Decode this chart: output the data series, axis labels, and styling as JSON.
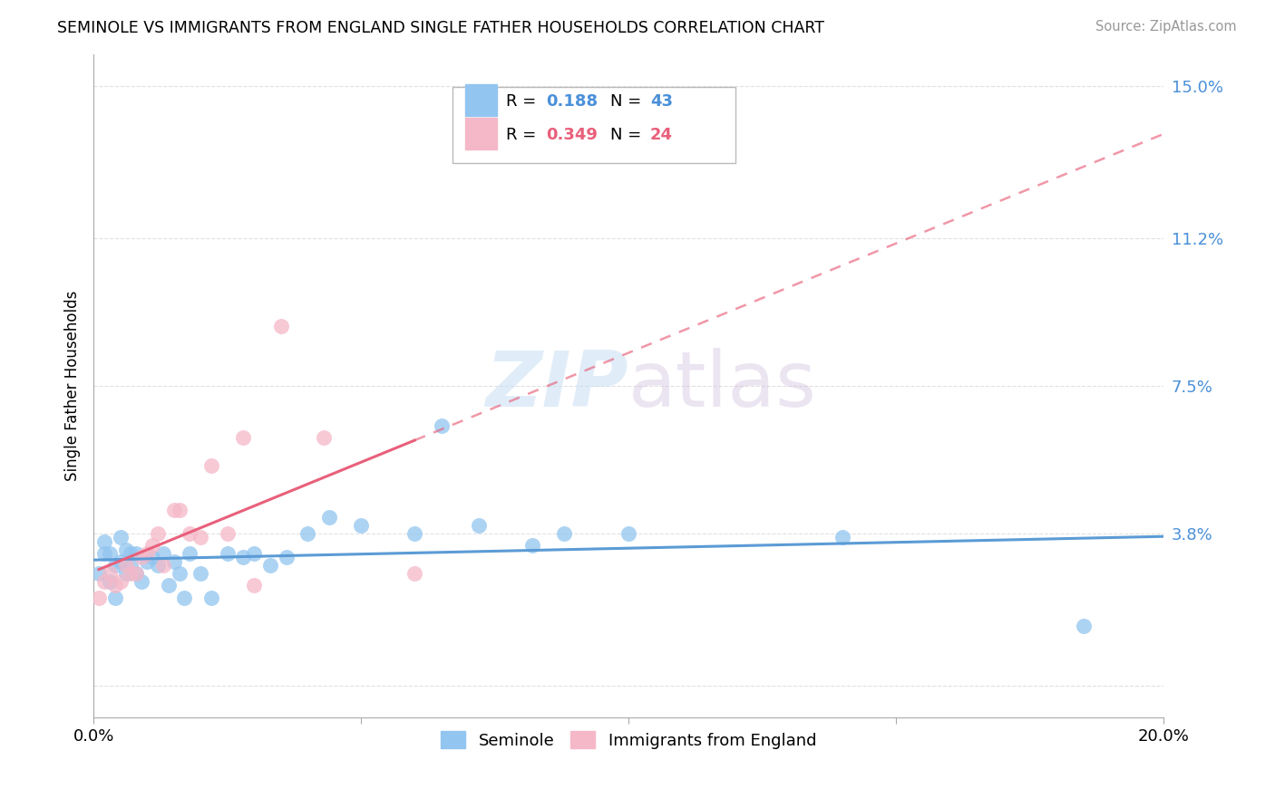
{
  "title": "SEMINOLE VS IMMIGRANTS FROM ENGLAND SINGLE FATHER HOUSEHOLDS CORRELATION CHART",
  "source": "Source: ZipAtlas.com",
  "ylabel": "Single Father Households",
  "xlim": [
    0.0,
    0.2
  ],
  "ylim": [
    -0.008,
    0.158
  ],
  "ytick_vals": [
    0.0,
    0.038,
    0.075,
    0.112,
    0.15
  ],
  "ytick_labels": [
    "",
    "3.8%",
    "7.5%",
    "11.2%",
    "15.0%"
  ],
  "xtick_vals": [
    0.0,
    0.05,
    0.1,
    0.15,
    0.2
  ],
  "xtick_labels": [
    "0.0%",
    "",
    "",
    "",
    "20.0%"
  ],
  "blue_R": "0.188",
  "blue_N": "43",
  "pink_R": "0.349",
  "pink_N": "24",
  "blue_color": "#92C5F0",
  "pink_color": "#F5B8C8",
  "blue_line_color": "#5B9BD5",
  "pink_line_color": "#E8607A",
  "sem_x": [
    0.001,
    0.002,
    0.002,
    0.003,
    0.003,
    0.004,
    0.004,
    0.005,
    0.005,
    0.006,
    0.006,
    0.007,
    0.007,
    0.008,
    0.008,
    0.009,
    0.01,
    0.011,
    0.012,
    0.013,
    0.014,
    0.015,
    0.016,
    0.017,
    0.018,
    0.02,
    0.022,
    0.025,
    0.028,
    0.03,
    0.033,
    0.036,
    0.04,
    0.044,
    0.05,
    0.06,
    0.065,
    0.072,
    0.082,
    0.088,
    0.1,
    0.14,
    0.185
  ],
  "sem_y": [
    0.028,
    0.033,
    0.036,
    0.026,
    0.033,
    0.03,
    0.022,
    0.031,
    0.037,
    0.034,
    0.028,
    0.033,
    0.03,
    0.033,
    0.028,
    0.026,
    0.031,
    0.032,
    0.03,
    0.033,
    0.025,
    0.031,
    0.028,
    0.022,
    0.033,
    0.028,
    0.022,
    0.033,
    0.032,
    0.033,
    0.03,
    0.032,
    0.038,
    0.042,
    0.04,
    0.038,
    0.065,
    0.04,
    0.035,
    0.038,
    0.038,
    0.037,
    0.015
  ],
  "eng_x": [
    0.001,
    0.002,
    0.003,
    0.004,
    0.005,
    0.006,
    0.007,
    0.008,
    0.009,
    0.01,
    0.011,
    0.012,
    0.013,
    0.015,
    0.016,
    0.018,
    0.02,
    0.022,
    0.025,
    0.028,
    0.03,
    0.035,
    0.043,
    0.06
  ],
  "eng_y": [
    0.022,
    0.026,
    0.028,
    0.025,
    0.026,
    0.03,
    0.028,
    0.028,
    0.032,
    0.033,
    0.035,
    0.038,
    0.03,
    0.044,
    0.044,
    0.038,
    0.037,
    0.055,
    0.038,
    0.062,
    0.025,
    0.09,
    0.062,
    0.028
  ],
  "background_color": "#FFFFFF",
  "grid_color": "#E0E0E0"
}
